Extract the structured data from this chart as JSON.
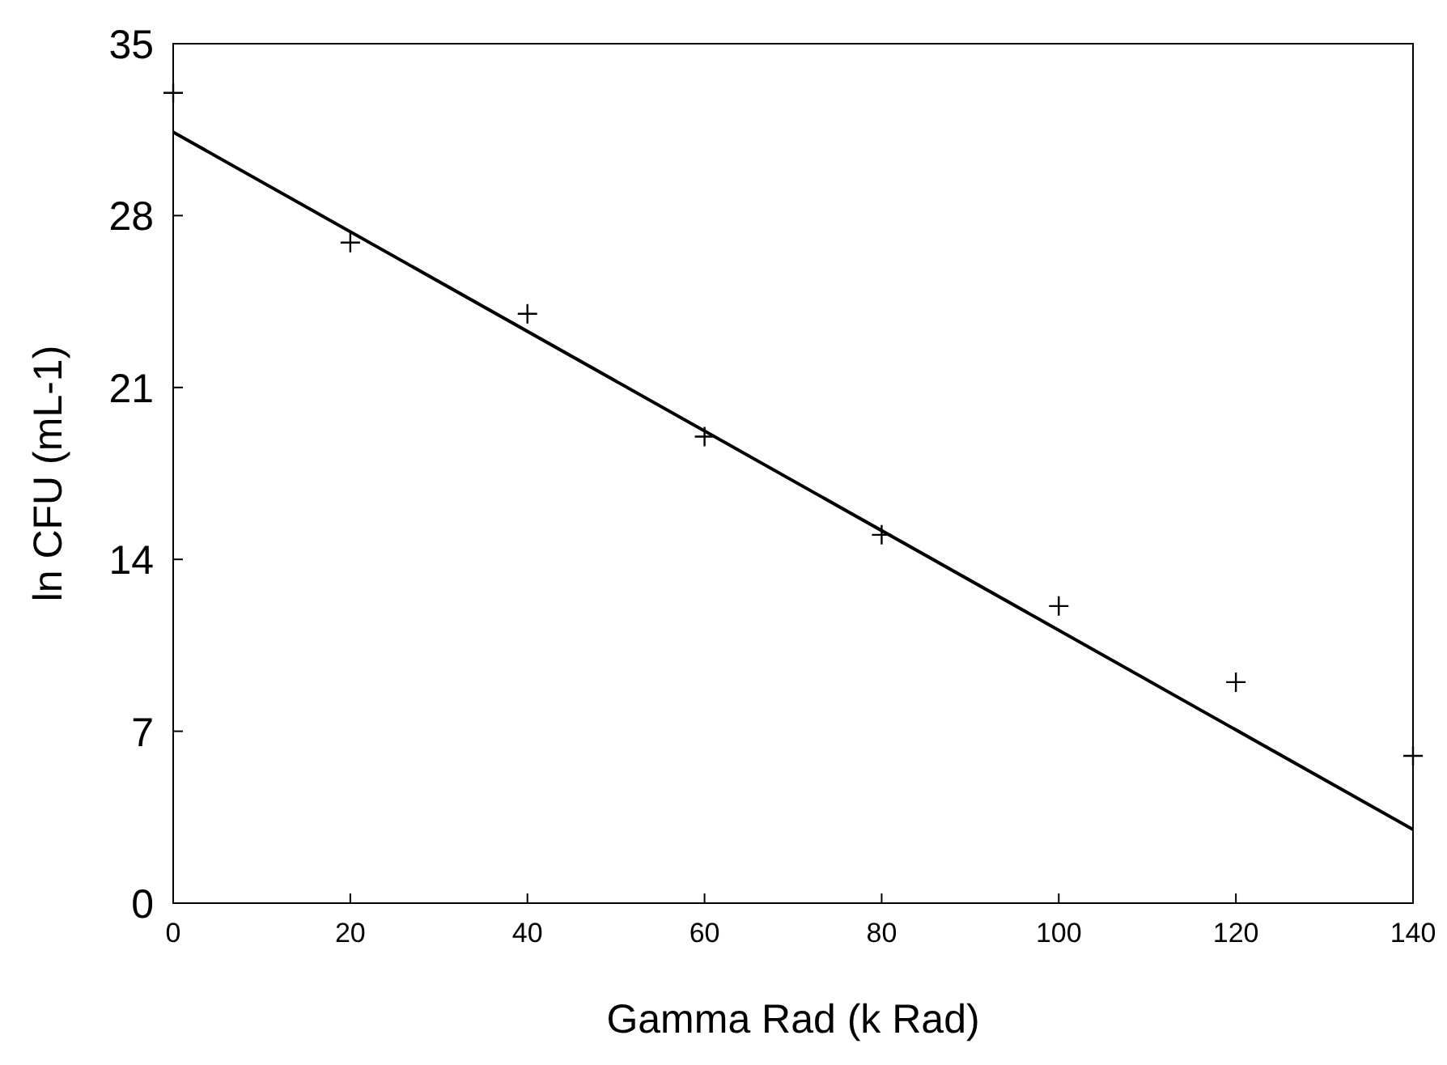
{
  "chart_data": {
    "type": "scatter",
    "xlabel": "Gamma Rad (k Rad)",
    "ylabel": "ln CFU (mL-1)",
    "xlim": [
      0,
      140
    ],
    "xticks": [
      0,
      20,
      40,
      60,
      80,
      100,
      120,
      140
    ],
    "ylim": [
      0,
      35
    ],
    "yticks": [
      0,
      7,
      14,
      21,
      28,
      35
    ],
    "grid": false,
    "series": [
      {
        "color": "#000000",
        "marker": "cross",
        "x": [
          0,
          20,
          40,
          60,
          80,
          100,
          120,
          140
        ],
        "values": [
          33.0,
          26.9,
          24.0,
          19.0,
          15.0,
          12.1,
          9.0,
          6.0
        ]
      },
      {
        "type": "line",
        "color": "#000000",
        "marker": "none",
        "x": [
          0,
          140
        ],
        "values": [
          31.4,
          3.0
        ]
      }
    ]
  }
}
